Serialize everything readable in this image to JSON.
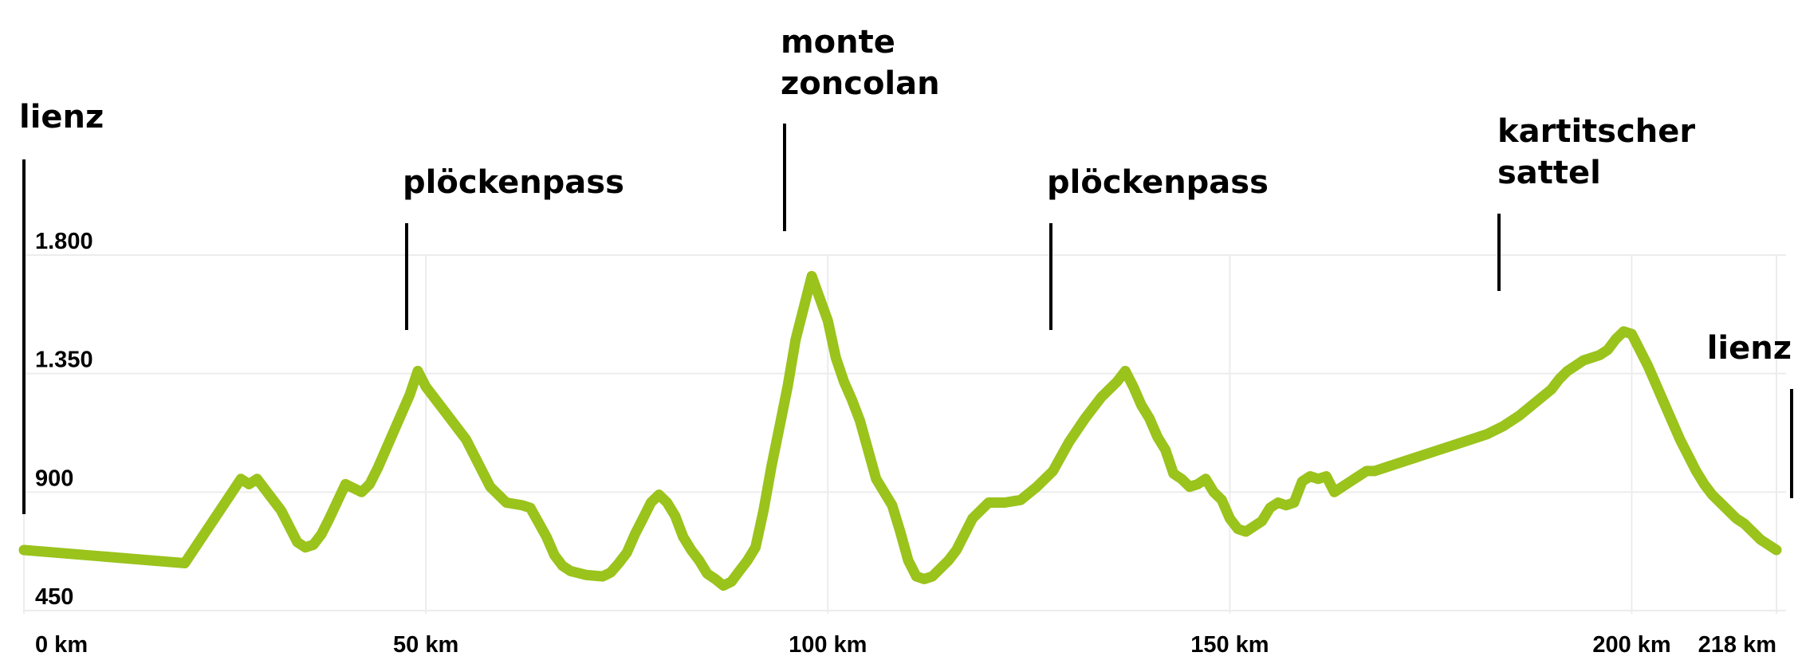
{
  "chart_data": {
    "type": "line",
    "title": "",
    "xlabel": "",
    "ylabel": "",
    "x_unit": "km",
    "xlim": [
      0,
      218
    ],
    "ylim": [
      450,
      1800
    ],
    "line_color": "#9ac31c",
    "grid": "vertical and horizontal light grey",
    "y_ticks": [
      {
        "value": 450,
        "label": "450"
      },
      {
        "value": 900,
        "label": "900"
      },
      {
        "value": 1350,
        "label": "1.350"
      },
      {
        "value": 1800,
        "label": "1.800"
      }
    ],
    "x_ticks": [
      {
        "value": 0,
        "label": "0 km"
      },
      {
        "value": 50,
        "label": "50 km"
      },
      {
        "value": 100,
        "label": "100 km"
      },
      {
        "value": 150,
        "label": "150 km"
      },
      {
        "value": 200,
        "label": "200 km"
      },
      {
        "value": 218,
        "label": "218 km"
      }
    ],
    "annotations": [
      {
        "label": "lienz",
        "x": 0,
        "y": 680
      },
      {
        "label": "plöckenpass",
        "x": 47,
        "y": 1360
      },
      {
        "label": "monte zoncolan",
        "x": 93,
        "y": 1730
      },
      {
        "label": "plöckenpass",
        "x": 126,
        "y": 1360
      },
      {
        "label": "kartitscher sattel",
        "x": 181,
        "y": 1510
      },
      {
        "label": "lienz",
        "x": 218,
        "y": 680
      }
    ],
    "series": [
      {
        "values": [
          [
            0,
            680
          ],
          [
            20,
            630
          ],
          [
            27,
            950
          ],
          [
            28,
            930
          ],
          [
            29,
            950
          ],
          [
            32,
            830
          ],
          [
            33,
            770
          ],
          [
            34,
            710
          ],
          [
            35,
            690
          ],
          [
            36,
            700
          ],
          [
            37,
            740
          ],
          [
            38,
            800
          ],
          [
            40,
            930
          ],
          [
            42,
            900
          ],
          [
            43,
            930
          ],
          [
            44,
            990
          ],
          [
            45,
            1060
          ],
          [
            46,
            1130
          ],
          [
            47,
            1200
          ],
          [
            48,
            1270
          ],
          [
            49,
            1360
          ],
          [
            50,
            1300
          ],
          [
            52,
            1220
          ],
          [
            55,
            1100
          ],
          [
            57,
            980
          ],
          [
            58,
            920
          ],
          [
            60,
            860
          ],
          [
            62,
            850
          ],
          [
            63,
            840
          ],
          [
            65,
            730
          ],
          [
            66,
            660
          ],
          [
            67,
            620
          ],
          [
            68,
            600
          ],
          [
            70,
            585
          ],
          [
            72,
            580
          ],
          [
            73,
            595
          ],
          [
            74,
            630
          ],
          [
            75,
            670
          ],
          [
            76,
            740
          ],
          [
            77,
            800
          ],
          [
            78,
            860
          ],
          [
            79,
            890
          ],
          [
            80,
            860
          ],
          [
            81,
            810
          ],
          [
            82,
            730
          ],
          [
            83,
            680
          ],
          [
            84,
            640
          ],
          [
            85,
            590
          ],
          [
            86,
            570
          ],
          [
            87,
            545
          ],
          [
            88,
            560
          ],
          [
            89,
            600
          ],
          [
            90,
            640
          ],
          [
            91,
            690
          ],
          [
            92,
            830
          ],
          [
            93,
            1000
          ],
          [
            94,
            1150
          ],
          [
            95,
            1300
          ],
          [
            96,
            1480
          ],
          [
            97,
            1600
          ],
          [
            98,
            1720
          ],
          [
            100,
            1550
          ],
          [
            101,
            1410
          ],
          [
            102,
            1320
          ],
          [
            103,
            1250
          ],
          [
            104,
            1170
          ],
          [
            105,
            1060
          ],
          [
            106,
            950
          ],
          [
            108,
            850
          ],
          [
            109,
            750
          ],
          [
            110,
            640
          ],
          [
            111,
            580
          ],
          [
            112,
            570
          ],
          [
            113,
            580
          ],
          [
            114,
            610
          ],
          [
            115,
            640
          ],
          [
            116,
            680
          ],
          [
            118,
            800
          ],
          [
            120,
            860
          ],
          [
            122,
            860
          ],
          [
            124,
            870
          ],
          [
            126,
            920
          ],
          [
            128,
            980
          ],
          [
            130,
            1090
          ],
          [
            132,
            1180
          ],
          [
            134,
            1260
          ],
          [
            136,
            1320
          ],
          [
            137,
            1360
          ],
          [
            138,
            1300
          ],
          [
            139,
            1230
          ],
          [
            140,
            1180
          ],
          [
            141,
            1110
          ],
          [
            142,
            1060
          ],
          [
            143,
            970
          ],
          [
            144,
            950
          ],
          [
            145,
            920
          ],
          [
            146,
            930
          ],
          [
            147,
            950
          ],
          [
            148,
            900
          ],
          [
            149,
            870
          ],
          [
            150,
            800
          ],
          [
            151,
            760
          ],
          [
            152,
            750
          ],
          [
            154,
            790
          ],
          [
            155,
            840
          ],
          [
            156,
            860
          ],
          [
            157,
            850
          ],
          [
            158,
            860
          ],
          [
            159,
            940
          ],
          [
            160,
            960
          ],
          [
            161,
            950
          ],
          [
            162,
            960
          ],
          [
            163,
            900
          ],
          [
            164,
            920
          ],
          [
            165,
            940
          ],
          [
            166,
            960
          ],
          [
            167,
            980
          ],
          [
            168,
            980
          ],
          [
            170,
            1000
          ],
          [
            172,
            1020
          ],
          [
            174,
            1040
          ],
          [
            176,
            1060
          ],
          [
            178,
            1080
          ],
          [
            180,
            1100
          ],
          [
            182,
            1120
          ],
          [
            184,
            1150
          ],
          [
            186,
            1190
          ],
          [
            188,
            1240
          ],
          [
            190,
            1290
          ],
          [
            191,
            1330
          ],
          [
            192,
            1360
          ],
          [
            193,
            1380
          ],
          [
            194,
            1400
          ],
          [
            195,
            1410
          ],
          [
            196,
            1420
          ],
          [
            197,
            1440
          ],
          [
            198,
            1480
          ],
          [
            199,
            1510
          ],
          [
            200,
            1500
          ],
          [
            201,
            1440
          ],
          [
            202,
            1380
          ],
          [
            203,
            1310
          ],
          [
            204,
            1240
          ],
          [
            205,
            1170
          ],
          [
            206,
            1100
          ],
          [
            207,
            1040
          ],
          [
            208,
            980
          ],
          [
            209,
            930
          ],
          [
            210,
            890
          ],
          [
            211,
            860
          ],
          [
            212,
            830
          ],
          [
            213,
            800
          ],
          [
            214,
            780
          ],
          [
            215,
            750
          ],
          [
            216,
            720
          ],
          [
            217,
            700
          ],
          [
            218,
            680
          ]
        ]
      }
    ]
  }
}
